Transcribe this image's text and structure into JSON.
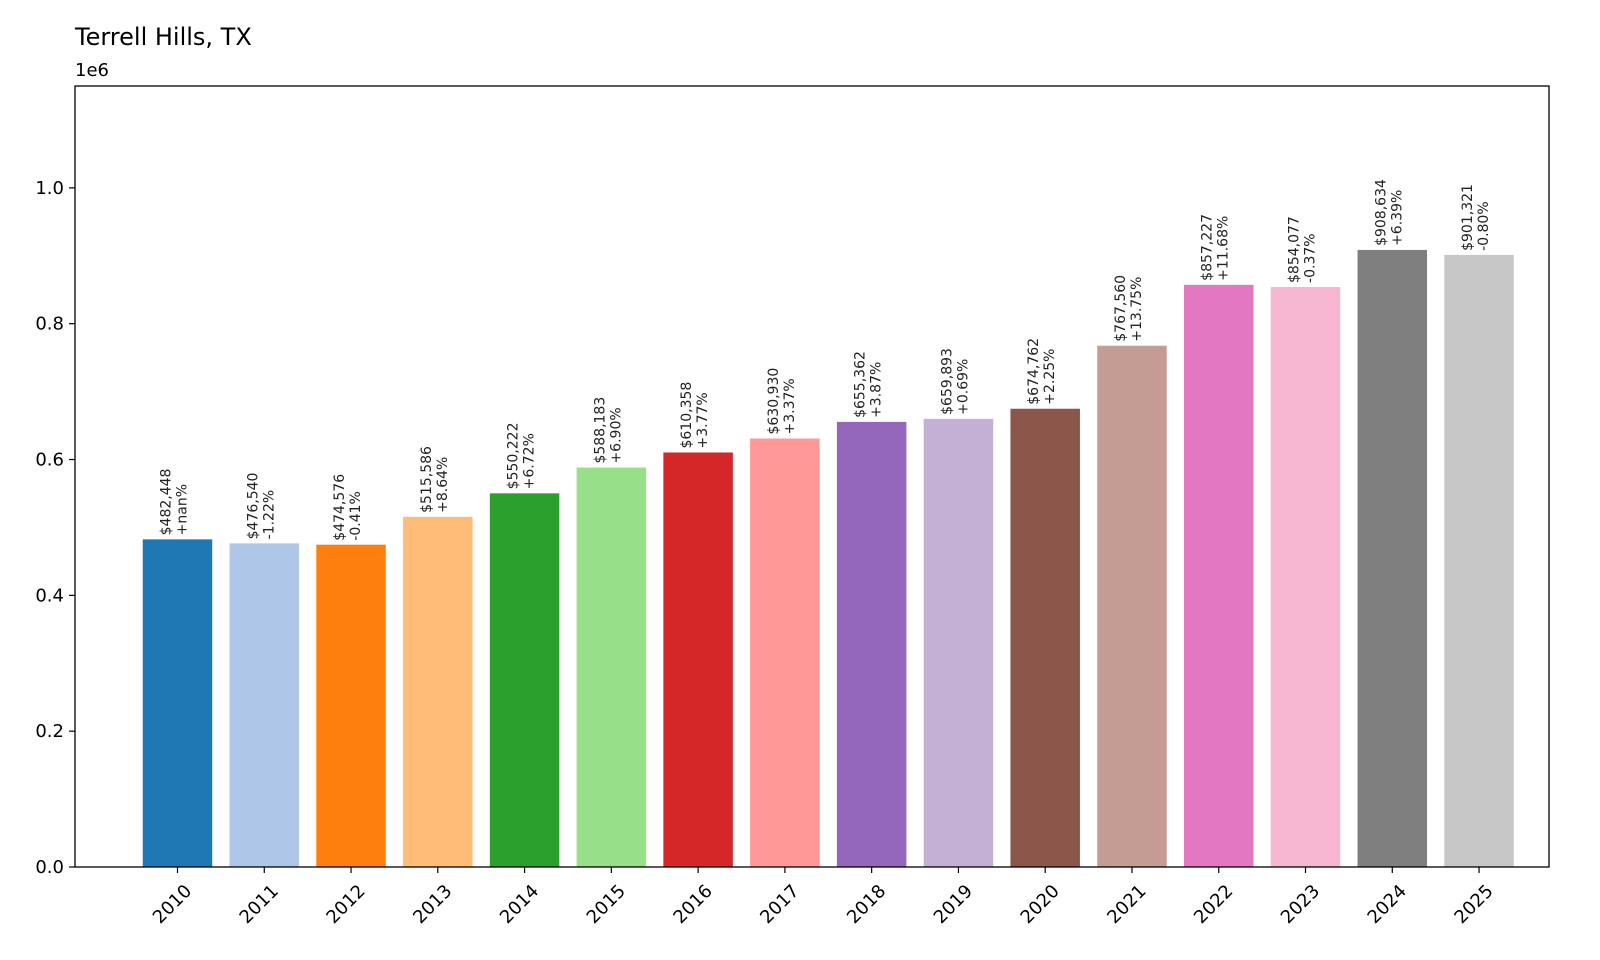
{
  "chart_data": {
    "type": "bar",
    "title": "Terrell Hills, TX",
    "y_offset_label": "1e6",
    "xlabel": "",
    "ylabel": "",
    "ylim": [
      0,
      1150000
    ],
    "yticks": [
      0,
      200000,
      400000,
      600000,
      800000,
      1000000
    ],
    "ytick_labels": [
      "0.0",
      "0.2",
      "0.4",
      "0.6",
      "0.8",
      "1.0"
    ],
    "grid": false,
    "categories": [
      "2010",
      "2011",
      "2012",
      "2013",
      "2014",
      "2015",
      "2016",
      "2017",
      "2018",
      "2019",
      "2020",
      "2021",
      "2022",
      "2023",
      "2024",
      "2025"
    ],
    "values": [
      482448,
      476540,
      474576,
      515586,
      550222,
      588183,
      610358,
      630930,
      655362,
      659893,
      674762,
      767560,
      857227,
      854077,
      908634,
      901321
    ],
    "value_labels": [
      "$482,448",
      "$476,540",
      "$474,576",
      "$515,586",
      "$550,222",
      "$588,183",
      "$610,358",
      "$630,930",
      "$655,362",
      "$659,893",
      "$674,762",
      "$767,560",
      "$857,227",
      "$854,077",
      "$908,634",
      "$901,321"
    ],
    "change_labels": [
      "+nan%",
      "-1.22%",
      "-0.41%",
      "+8.64%",
      "+6.72%",
      "+6.90%",
      "+3.77%",
      "+3.37%",
      "+3.87%",
      "+0.69%",
      "+2.25%",
      "+13.75%",
      "+11.68%",
      "-0.37%",
      "+6.39%",
      "-0.80%"
    ],
    "colors": [
      "#1f77b4",
      "#aec7e8",
      "#ff7f0e",
      "#ffbb78",
      "#2ca02c",
      "#98df8a",
      "#d62728",
      "#ff9896",
      "#9467bd",
      "#c5b0d5",
      "#8c564b",
      "#c49c94",
      "#e377c2",
      "#f7b6d2",
      "#7f7f7f",
      "#c7c7c7"
    ]
  }
}
